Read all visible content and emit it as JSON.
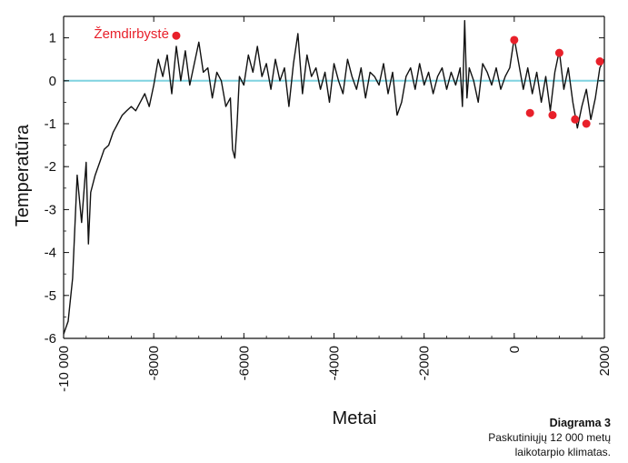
{
  "chart_data": {
    "type": "line",
    "xlabel": "Metai",
    "ylabel": "Temperatūra",
    "xlim": [
      -10000,
      2000
    ],
    "ylim": [
      -6,
      1.5
    ],
    "x_ticks": [
      -10000,
      -8000,
      -6000,
      -4000,
      -2000,
      0,
      2000
    ],
    "x_tick_labels": [
      "-10 000",
      "-8000",
      "-6000",
      "-4000",
      "-2000",
      "0",
      "2000"
    ],
    "y_ticks": [
      1,
      0,
      -1,
      -2,
      -3,
      -4,
      -5,
      -6
    ],
    "y_tick_labels": [
      "1",
      "0",
      "-1",
      "-2",
      "-3",
      "-4",
      "-5",
      "-6"
    ],
    "reference_line": {
      "y": 0,
      "color": "#7fd3e0"
    },
    "series": [
      {
        "color": "#111111",
        "x": [
          -10000,
          -9900,
          -9800,
          -9700,
          -9600,
          -9500,
          -9450,
          -9400,
          -9300,
          -9200,
          -9100,
          -9000,
          -8900,
          -8800,
          -8700,
          -8600,
          -8500,
          -8400,
          -8300,
          -8200,
          -8100,
          -8000,
          -7900,
          -7800,
          -7700,
          -7600,
          -7500,
          -7400,
          -7300,
          -7200,
          -7100,
          -7000,
          -6900,
          -6800,
          -6700,
          -6600,
          -6500,
          -6400,
          -6300,
          -6250,
          -6200,
          -6150,
          -6100,
          -6000,
          -5900,
          -5800,
          -5700,
          -5600,
          -5500,
          -5400,
          -5300,
          -5200,
          -5100,
          -5000,
          -4900,
          -4800,
          -4700,
          -4600,
          -4500,
          -4400,
          -4300,
          -4200,
          -4100,
          -4000,
          -3900,
          -3800,
          -3700,
          -3600,
          -3500,
          -3400,
          -3300,
          -3200,
          -3100,
          -3000,
          -2900,
          -2800,
          -2700,
          -2600,
          -2500,
          -2400,
          -2300,
          -2200,
          -2100,
          -2000,
          -1900,
          -1800,
          -1700,
          -1600,
          -1500,
          -1400,
          -1300,
          -1200,
          -1150,
          -1100,
          -1050,
          -1000,
          -900,
          -800,
          -700,
          -600,
          -500,
          -400,
          -300,
          -200,
          -100,
          0,
          100,
          200,
          300,
          400,
          500,
          600,
          700,
          800,
          900,
          1000,
          1100,
          1200,
          1300,
          1400,
          1500,
          1600,
          1700,
          1800,
          1900,
          2000
        ],
        "values": [
          -5.9,
          -5.6,
          -4.6,
          -2.2,
          -3.3,
          -1.9,
          -3.8,
          -2.6,
          -2.2,
          -1.9,
          -1.6,
          -1.5,
          -1.2,
          -1.0,
          -0.8,
          -0.7,
          -0.6,
          -0.7,
          -0.5,
          -0.3,
          -0.6,
          -0.1,
          0.5,
          0.1,
          0.6,
          -0.3,
          0.8,
          0.0,
          0.7,
          -0.1,
          0.4,
          0.9,
          0.2,
          0.3,
          -0.4,
          0.2,
          0.0,
          -0.6,
          -0.4,
          -1.6,
          -1.8,
          -1.0,
          0.1,
          -0.1,
          0.6,
          0.2,
          0.8,
          0.1,
          0.4,
          -0.2,
          0.5,
          0.0,
          0.3,
          -0.6,
          0.4,
          1.1,
          -0.3,
          0.6,
          0.1,
          0.3,
          -0.2,
          0.2,
          -0.5,
          0.4,
          0.0,
          -0.3,
          0.5,
          0.1,
          -0.2,
          0.3,
          -0.4,
          0.2,
          0.1,
          -0.1,
          0.4,
          -0.3,
          0.2,
          -0.8,
          -0.5,
          0.1,
          0.3,
          -0.2,
          0.4,
          -0.1,
          0.2,
          -0.3,
          0.1,
          0.3,
          -0.2,
          0.2,
          -0.1,
          0.3,
          -0.6,
          1.4,
          -0.4,
          0.3,
          0.0,
          -0.5,
          0.4,
          0.2,
          -0.1,
          0.3,
          -0.2,
          0.1,
          0.3,
          1.0,
          0.4,
          -0.2,
          0.3,
          -0.3,
          0.2,
          -0.5,
          0.1,
          -0.7,
          0.2,
          0.7,
          -0.2,
          0.3,
          -0.5,
          -1.1,
          -0.6,
          -0.2,
          -0.9,
          -0.4,
          0.3,
          0.5
        ]
      }
    ],
    "markers": {
      "color": "#e8202a",
      "x": [
        -7500,
        0,
        350,
        850,
        1000,
        1350,
        1600,
        1900
      ],
      "values": [
        1.05,
        0.95,
        -0.75,
        -0.8,
        0.65,
        -0.9,
        -1.0,
        0.45
      ]
    },
    "annotation": {
      "text": "Žemdirbystė",
      "x": -7500,
      "y": 1.05,
      "color": "#e8202a"
    }
  },
  "caption": {
    "title": "Diagrama 3",
    "line1": "Paskutiniųjų 12 000 metų",
    "line2": "laikotarpio klimatas."
  }
}
